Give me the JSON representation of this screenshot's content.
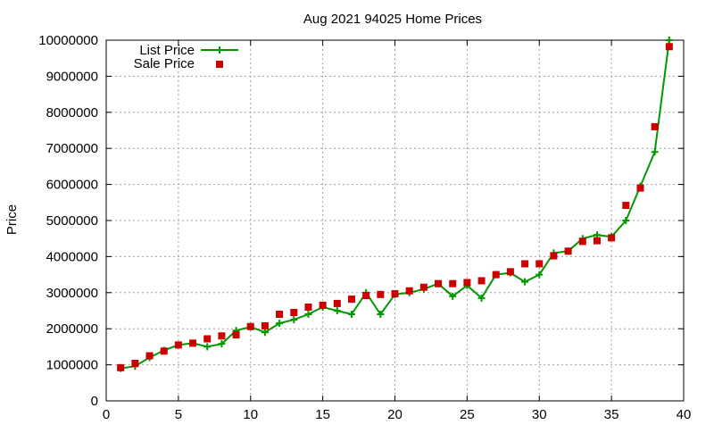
{
  "chart_data": {
    "type": "line",
    "title": "Aug 2021 94025 Home Prices",
    "xlabel": "",
    "ylabel": "Price",
    "xlim": [
      0,
      40
    ],
    "ylim": [
      0,
      10000000
    ],
    "xticks": [
      0,
      5,
      10,
      15,
      20,
      25,
      30,
      35,
      40
    ],
    "yticks": [
      0,
      1000000,
      2000000,
      3000000,
      4000000,
      5000000,
      6000000,
      7000000,
      8000000,
      9000000,
      10000000
    ],
    "grid": true,
    "legend_position": "top-left",
    "x": [
      1,
      2,
      3,
      4,
      5,
      6,
      7,
      8,
      9,
      10,
      11,
      12,
      13,
      14,
      15,
      16,
      17,
      18,
      19,
      20,
      21,
      22,
      23,
      24,
      25,
      26,
      27,
      28,
      29,
      30,
      31,
      32,
      33,
      34,
      35,
      36,
      37,
      38,
      39
    ],
    "series": [
      {
        "name": "List Price",
        "style": "line-with-plus-markers",
        "color": "#009900",
        "values": [
          900000,
          960000,
          1200000,
          1400000,
          1550000,
          1600000,
          1500000,
          1580000,
          1950000,
          2050000,
          1900000,
          2150000,
          2250000,
          2400000,
          2600000,
          2500000,
          2400000,
          3000000,
          2400000,
          2950000,
          3000000,
          3100000,
          3250000,
          2900000,
          3200000,
          2850000,
          3500000,
          3550000,
          3300000,
          3500000,
          4100000,
          4150000,
          4500000,
          4600000,
          4550000,
          5000000,
          5950000,
          6900000,
          10000000
        ]
      },
      {
        "name": "Sale Price",
        "style": "square-markers",
        "color": "#cc0000",
        "values": [
          920000,
          1040000,
          1250000,
          1380000,
          1550000,
          1600000,
          1720000,
          1800000,
          1830000,
          2060000,
          2080000,
          2400000,
          2450000,
          2600000,
          2650000,
          2700000,
          2820000,
          2920000,
          2950000,
          2970000,
          3050000,
          3150000,
          3250000,
          3250000,
          3280000,
          3330000,
          3500000,
          3580000,
          3800000,
          3800000,
          4020000,
          4150000,
          4420000,
          4440000,
          4520000,
          5420000,
          5900000,
          7600000,
          9820000
        ]
      }
    ]
  }
}
